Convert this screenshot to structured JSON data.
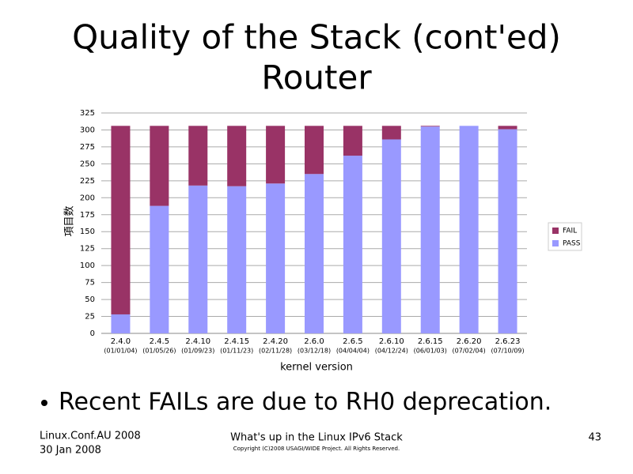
{
  "slide": {
    "title": [
      "Quality of the Stack (cont'ed)",
      "Router"
    ],
    "bullet": "Recent FAILs are due to RH0 deprecation.",
    "footer_left": [
      "Linux.Conf.AU 2008",
      "30 Jan 2008"
    ],
    "footer_center": "What's up in the Linux IPv6 Stack",
    "copyright": "Copyright (C)2008 USAGI/WIDE Project.  All Rights Reserved.",
    "page_number": "43"
  },
  "chart_data": {
    "type": "stacked_bar",
    "x_label": "kernel version",
    "y_label": "項目数",
    "categories": [
      "2.4.0",
      "2.4.5",
      "2.4.10",
      "2.4.15",
      "2.4.20",
      "2.6.0",
      "2.6.5",
      "2.6.10",
      "2.6.15",
      "2.6.20",
      "2.6.23"
    ],
    "category_dates": [
      "(01/01/04)",
      "(01/05/26)",
      "(01/09/23)",
      "(01/11/23)",
      "(02/11/28)",
      "(03/12/18)",
      "(04/04/04)",
      "(04/12/24)",
      "(06/01/03)",
      "(07/02/04)",
      "(07/10/09)"
    ],
    "series": [
      {
        "name": "FAIL",
        "color": "#993366",
        "values": [
          278,
          118,
          88,
          89,
          85,
          71,
          44,
          20,
          1,
          0,
          5
        ]
      },
      {
        "name": "PASS",
        "color": "#9999ff",
        "values": [
          28,
          188,
          218,
          217,
          221,
          235,
          262,
          286,
          305,
          306,
          301
        ]
      }
    ],
    "ylim": [
      0,
      325
    ],
    "yticks": [
      0,
      25,
      50,
      75,
      100,
      125,
      150,
      175,
      200,
      225,
      250,
      275,
      300,
      325
    ],
    "grid": true,
    "legend": "right"
  }
}
